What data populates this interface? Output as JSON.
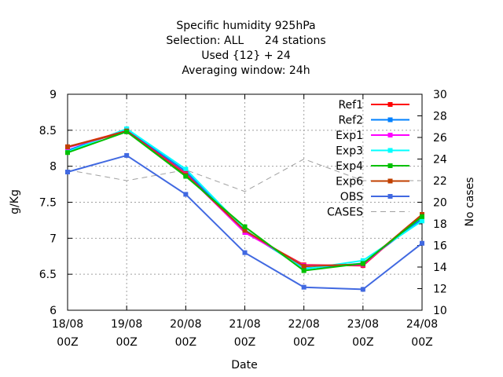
{
  "chart_data": {
    "type": "line",
    "title": [
      "Specific humidity 925hPa",
      "Selection: ALL      24 stations",
      "Used {12} + 24",
      "Averaging window: 24h"
    ],
    "xlabel": "Date",
    "ylabel": "g/Kg",
    "y2label": "No cases",
    "categories": [
      [
        "18/08",
        "00Z"
      ],
      [
        "19/08",
        "00Z"
      ],
      [
        "20/08",
        "00Z"
      ],
      [
        "21/08",
        "00Z"
      ],
      [
        "22/08",
        "00Z"
      ],
      [
        "23/08",
        "00Z"
      ],
      [
        "24/08",
        "00Z"
      ]
    ],
    "ylim": [
      6,
      9
    ],
    "yticks": [
      6,
      6.5,
      7,
      7.5,
      8,
      8.5,
      9
    ],
    "ytick_labels": [
      "6",
      "6.5",
      "7",
      "7.5",
      "8",
      "8.5",
      "9"
    ],
    "y2lim": [
      10,
      30
    ],
    "y2ticks": [
      10,
      12,
      14,
      16,
      18,
      20,
      22,
      24,
      26,
      28,
      30
    ],
    "grid": true,
    "legend_position": "top-right",
    "series": [
      {
        "name": "Ref1",
        "color": "#ff0000",
        "axis": "y",
        "style": "solid",
        "values": [
          8.27,
          8.49,
          7.9,
          7.08,
          6.63,
          6.62,
          7.33
        ]
      },
      {
        "name": "Ref2",
        "color": "#0080ff",
        "axis": "y",
        "style": "solid",
        "values": [
          8.22,
          8.51,
          7.93,
          7.1,
          6.58,
          6.65,
          7.27
        ]
      },
      {
        "name": "Exp1",
        "color": "#ff00ff",
        "axis": "y",
        "style": "solid",
        "values": [
          8.26,
          8.48,
          7.89,
          7.08,
          6.62,
          6.63,
          7.32
        ]
      },
      {
        "name": "Exp3",
        "color": "#00ffff",
        "axis": "y",
        "style": "solid",
        "values": [
          8.2,
          8.52,
          7.96,
          7.12,
          6.57,
          6.69,
          7.24
        ]
      },
      {
        "name": "Exp4",
        "color": "#00c000",
        "axis": "y",
        "style": "solid",
        "values": [
          8.19,
          8.48,
          7.86,
          7.16,
          6.55,
          6.65,
          7.3
        ]
      },
      {
        "name": "Exp6",
        "color": "#c04000",
        "axis": "y",
        "style": "solid",
        "values": [
          8.27,
          8.48,
          7.88,
          7.11,
          6.61,
          6.64,
          7.33
        ]
      },
      {
        "name": "OBS",
        "color": "#4169e1",
        "axis": "y",
        "style": "solid",
        "values": [
          7.92,
          8.15,
          7.61,
          6.8,
          6.32,
          6.29,
          6.93
        ]
      },
      {
        "name": "CASES",
        "color": "#a0a0a0",
        "axis": "y2",
        "style": "dashed",
        "values": [
          23,
          22,
          23,
          21,
          24,
          22,
          22
        ]
      }
    ]
  }
}
